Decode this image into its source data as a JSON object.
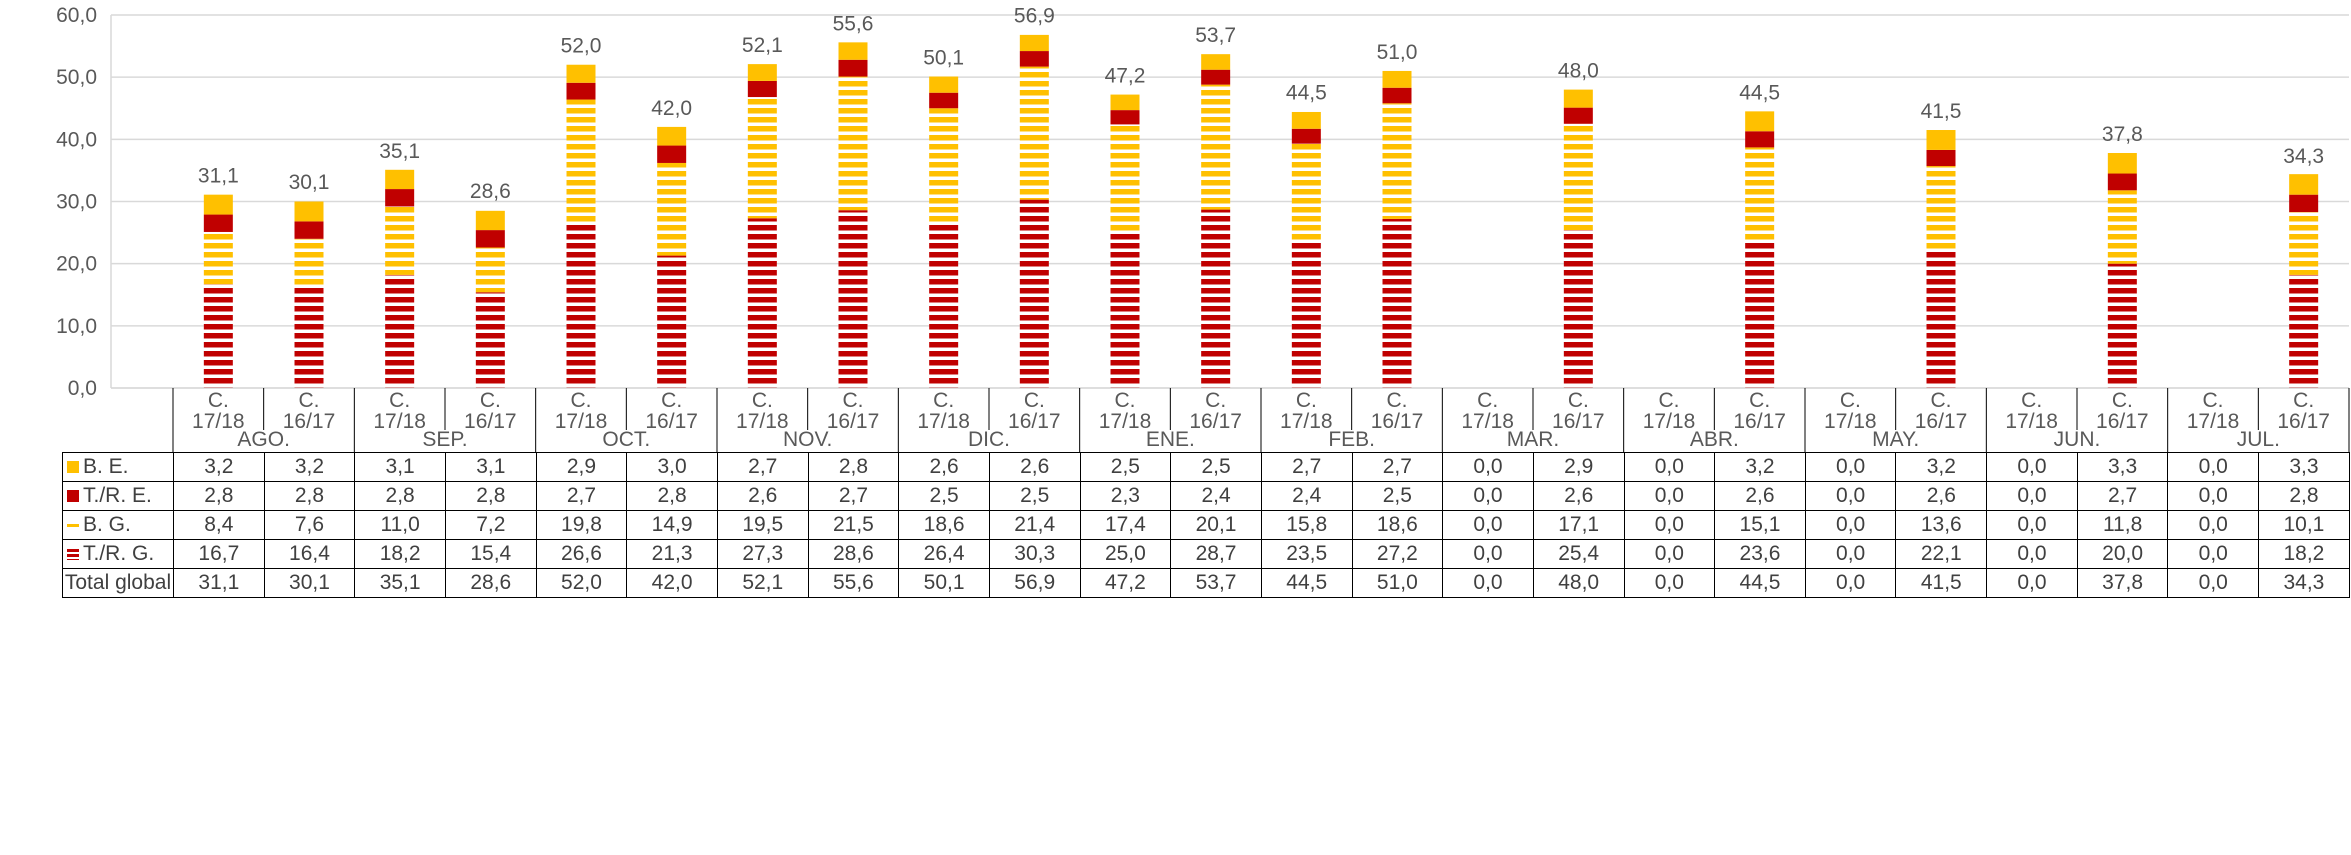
{
  "chart_data": {
    "type": "bar",
    "stacked": true,
    "ylim": [
      0,
      60
    ],
    "y_ticks": [
      "0,0",
      "10,0",
      "20,0",
      "30,0",
      "40,0",
      "50,0",
      "60,0"
    ],
    "grid": true,
    "months": [
      "AGO.",
      "SEP.",
      "OCT.",
      "NOV.",
      "DIC.",
      "ENE.",
      "FEB.",
      "MAR.",
      "ABR.",
      "MAY.",
      "JUN.",
      "JUL."
    ],
    "campaigns": [
      "C. 17/18",
      "C. 16/17"
    ],
    "campaign_lines": [
      [
        "C.",
        "17/18"
      ],
      [
        "C.",
        "16/17"
      ]
    ],
    "series": [
      {
        "key": "trg",
        "name": "T./R. G.",
        "color": "#C00000",
        "pattern": "stripes",
        "values": [
          16.7,
          16.4,
          18.2,
          15.4,
          26.6,
          21.3,
          27.3,
          28.6,
          26.4,
          30.3,
          25.0,
          28.7,
          23.5,
          27.2,
          0,
          25.4,
          0,
          23.6,
          0,
          22.1,
          0,
          20.0,
          0,
          18.2
        ],
        "labels": [
          "16,7",
          "16,4",
          "18,2",
          "15,4",
          "26,6",
          "21,3",
          "27,3",
          "28,6",
          "26,4",
          "30,3",
          "25,0",
          "28,7",
          "23,5",
          "27,2",
          "0,0",
          "25,4",
          "0,0",
          "23,6",
          "0,0",
          "22,1",
          "0,0",
          "20,0",
          "0,0",
          "18,2"
        ]
      },
      {
        "key": "bg",
        "name": "B. G.",
        "color": "#FFC000",
        "pattern": "stripes",
        "values": [
          8.4,
          7.6,
          11.0,
          7.2,
          19.8,
          14.9,
          19.5,
          21.5,
          18.6,
          21.4,
          17.4,
          20.1,
          15.8,
          18.6,
          0,
          17.1,
          0,
          15.1,
          0,
          13.6,
          0,
          11.8,
          0,
          10.1
        ],
        "labels": [
          "8,4",
          "7,6",
          "11,0",
          "7,2",
          "19,8",
          "14,9",
          "19,5",
          "21,5",
          "18,6",
          "21,4",
          "17,4",
          "20,1",
          "15,8",
          "18,6",
          "0,0",
          "17,1",
          "0,0",
          "15,1",
          "0,0",
          "13,6",
          "0,0",
          "11,8",
          "0,0",
          "10,1"
        ]
      },
      {
        "key": "tre",
        "name": "T./R. E.",
        "color": "#C00000",
        "pattern": "solid",
        "values": [
          2.8,
          2.8,
          2.8,
          2.8,
          2.7,
          2.8,
          2.6,
          2.7,
          2.5,
          2.5,
          2.3,
          2.4,
          2.4,
          2.5,
          0,
          2.6,
          0,
          2.6,
          0,
          2.6,
          0,
          2.7,
          0,
          2.8
        ],
        "labels": [
          "2,8",
          "2,8",
          "2,8",
          "2,8",
          "2,7",
          "2,8",
          "2,6",
          "2,7",
          "2,5",
          "2,5",
          "2,3",
          "2,4",
          "2,4",
          "2,5",
          "0,0",
          "2,6",
          "0,0",
          "2,6",
          "0,0",
          "2,6",
          "0,0",
          "2,7",
          "0,0",
          "2,8"
        ]
      },
      {
        "key": "be",
        "name": "B. E.",
        "color": "#FFC000",
        "pattern": "solid",
        "values": [
          3.2,
          3.2,
          3.1,
          3.1,
          2.9,
          3.0,
          2.7,
          2.8,
          2.6,
          2.6,
          2.5,
          2.5,
          2.7,
          2.7,
          0,
          2.9,
          0,
          3.2,
          0,
          3.2,
          0,
          3.3,
          0,
          3.3
        ],
        "labels": [
          "3,2",
          "3,2",
          "3,1",
          "3,1",
          "2,9",
          "3,0",
          "2,7",
          "2,8",
          "2,6",
          "2,6",
          "2,5",
          "2,5",
          "2,7",
          "2,7",
          "0,0",
          "2,9",
          "0,0",
          "3,2",
          "0,0",
          "3,2",
          "0,0",
          "3,3",
          "0,0",
          "3,3"
        ]
      }
    ],
    "totals": [
      31.1,
      30.1,
      35.1,
      28.6,
      52.0,
      42.0,
      52.1,
      55.6,
      50.1,
      56.9,
      47.2,
      53.7,
      44.5,
      51.0,
      0,
      48.0,
      0,
      44.5,
      0,
      41.5,
      0,
      37.8,
      0,
      34.3
    ],
    "total_labels": [
      "31,1",
      "30,1",
      "35,1",
      "28,6",
      "52,0",
      "42,0",
      "52,1",
      "55,6",
      "50,1",
      "56,9",
      "47,2",
      "53,7",
      "44,5",
      "51,0",
      "0,0",
      "48,0",
      "0,0",
      "44,5",
      "0,0",
      "41,5",
      "0,0",
      "37,8",
      "0,0",
      "34,3"
    ],
    "table_rows": [
      "be",
      "tre",
      "bg",
      "trg"
    ],
    "total_row_name": "Total global"
  }
}
